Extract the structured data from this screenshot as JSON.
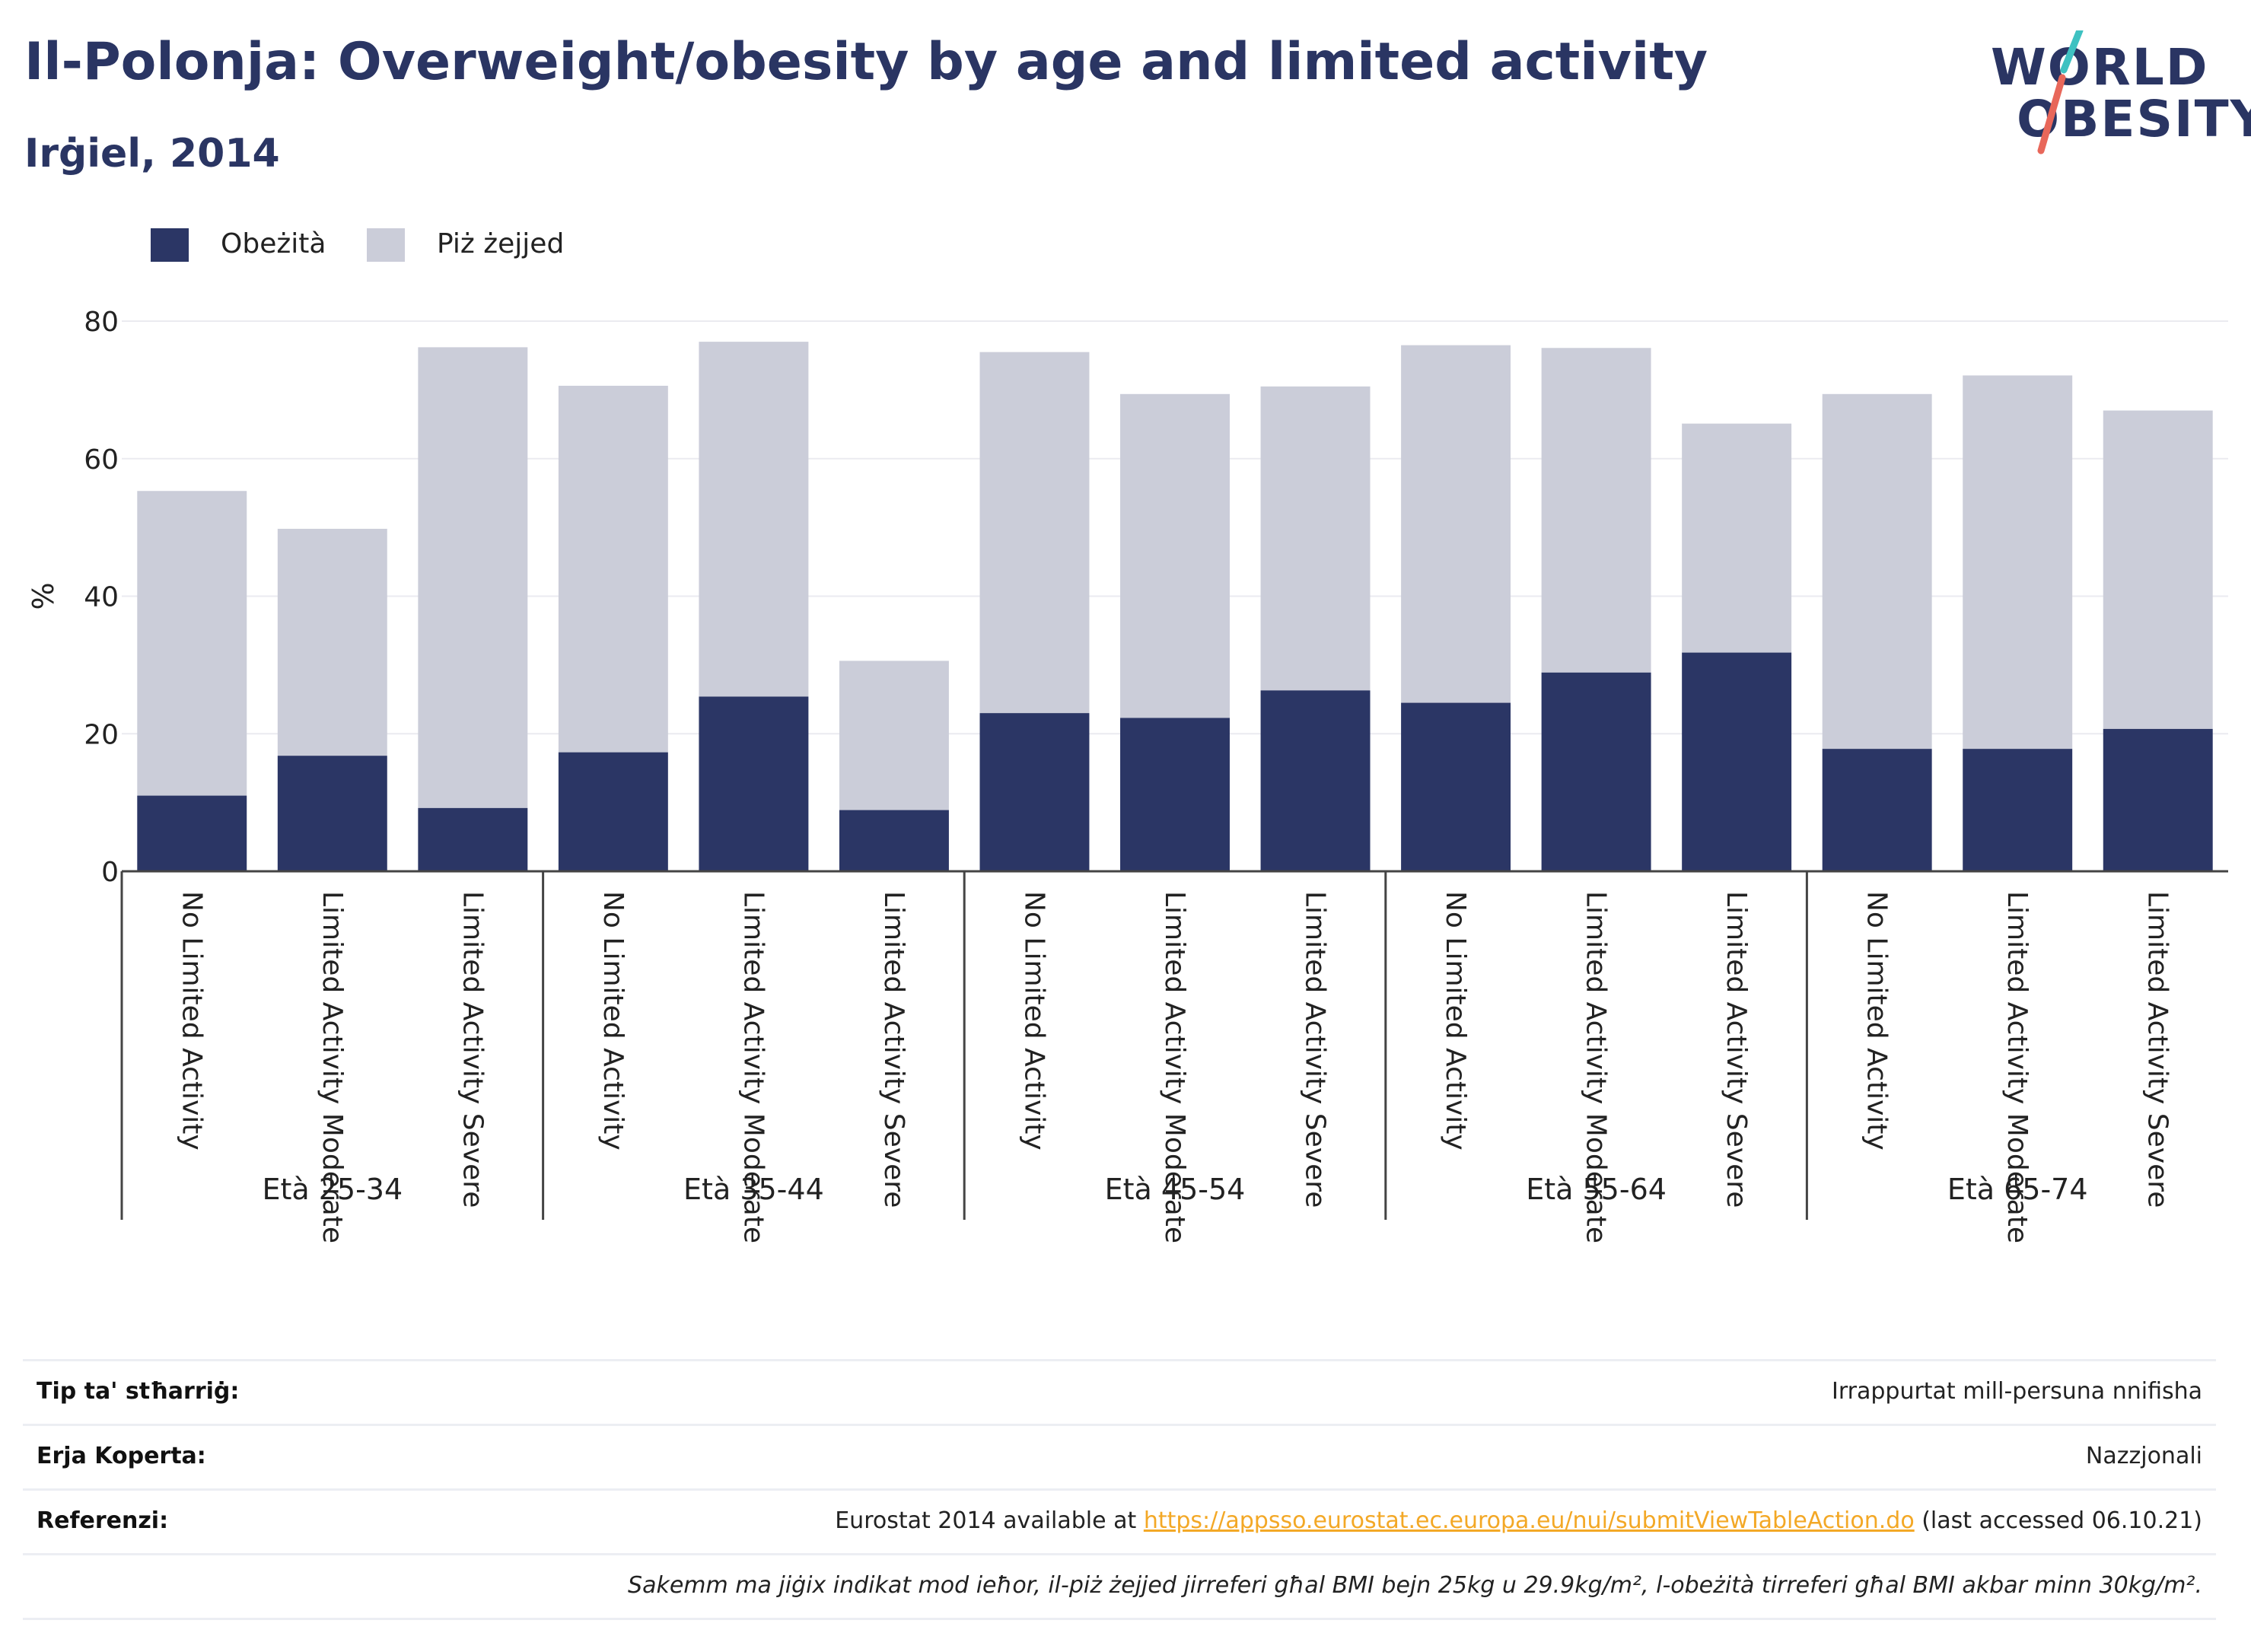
{
  "header": {
    "title": "Il-Polonja: Overweight/obesity by age and limited activity",
    "subtitle": "Irġiel, 2014"
  },
  "logo": {
    "line1": "WORLD",
    "line2": "OBESITY"
  },
  "colors": {
    "obesity": "#2b3665",
    "overweight": "#cbcdd9",
    "accent_teal": "#3ec1c1",
    "accent_red": "#e8675a",
    "link": "#f3a826"
  },
  "legend": [
    {
      "label": "Obeżità",
      "color": "#2b3665"
    },
    {
      "label": "Piż żejjed",
      "color": "#cbcdd9"
    }
  ],
  "chart_data": {
    "type": "bar",
    "stacked": true,
    "ylabel": "%",
    "ylim": [
      0,
      80
    ],
    "yticks": [
      0,
      20,
      40,
      60,
      80
    ],
    "grid": true,
    "legend_position": "top-left",
    "groups": [
      {
        "label": "Età 25-34",
        "categories": [
          "No Limited Activity",
          "Limited Activity Moderate",
          "Limited Activity Severe"
        ],
        "obesity": [
          11,
          16.8,
          9.2
        ],
        "total": [
          55.3,
          49.8,
          76.2
        ]
      },
      {
        "label": "Età 35-44",
        "categories": [
          "No Limited Activity",
          "Limited Activity Moderate",
          "Limited Activity Severe"
        ],
        "obesity": [
          17.3,
          25.4,
          8.9
        ],
        "total": [
          70.6,
          77,
          30.6
        ]
      },
      {
        "label": "Età 45-54",
        "categories": [
          "No Limited Activity",
          "Limited Activity Moderate",
          "Limited Activity Severe"
        ],
        "obesity": [
          23,
          22.3,
          26.3
        ],
        "total": [
          75.5,
          69.4,
          70.5
        ]
      },
      {
        "label": "Età 55-64",
        "categories": [
          "No Limited Activity",
          "Limited Activity Moderate",
          "Limited Activity Severe"
        ],
        "obesity": [
          24.5,
          28.9,
          31.8
        ],
        "total": [
          76.5,
          76.1,
          65.1
        ]
      },
      {
        "label": "Età 65-74",
        "categories": [
          "No Limited Activity",
          "Limited Activity Moderate",
          "Limited Activity Severe"
        ],
        "obesity": [
          17.8,
          17.8,
          20.7
        ],
        "total": [
          69.4,
          72.1,
          67
        ]
      }
    ]
  },
  "footer": {
    "type_label": "Tip ta' stħarriġ:",
    "type_value": "Irrappurtat mill-persuna nnifisha",
    "area_label": "Erja Koperta:",
    "area_value": "Nazzjonali",
    "ref_label": "Referenzi:",
    "ref_prefix": "Eurostat 2014 available at ",
    "ref_link": "https://appsso.eurostat.ec.europa.eu/nui/submitViewTableAction.do",
    "ref_suffix": " (last accessed 06.10.21)",
    "note": "Sakemm ma jiġix indikat mod ieħor, il-piż żejjed jirreferi għal BMI bejn 25kg u 29.9kg/m², l-obeżità tirreferi għal BMI akbar minn 30kg/m²."
  }
}
